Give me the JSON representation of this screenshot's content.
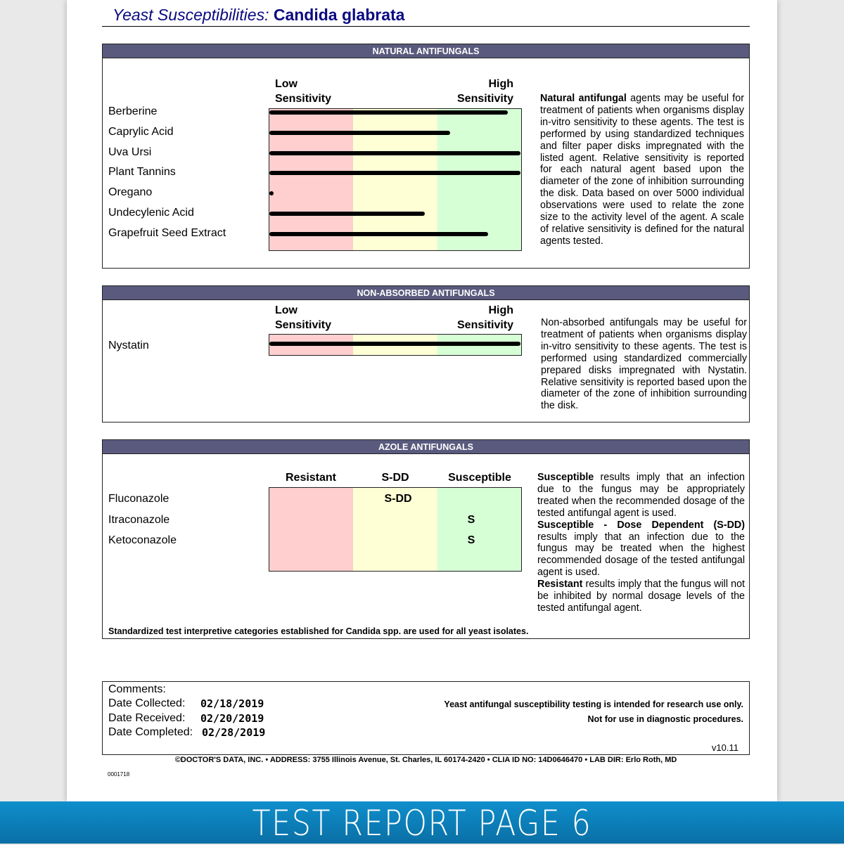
{
  "title": {
    "prefix": "Yeast Susceptibilities:",
    "organism": "Candida glabrata"
  },
  "natural": {
    "header": "NATURAL ANTIFUNGALS",
    "low": [
      "Low",
      "Sensitivity"
    ],
    "high": [
      "High",
      "Sensitivity"
    ],
    "items": [
      {
        "name": "Berberine",
        "value": 0.95
      },
      {
        "name": "Caprylic Acid",
        "value": 0.72
      },
      {
        "name": "Uva Ursi",
        "value": 1.0
      },
      {
        "name": "Plant Tannins",
        "value": 1.0
      },
      {
        "name": "Oregano",
        "value": 0.01
      },
      {
        "name": "Undecylenic Acid",
        "value": 0.62
      },
      {
        "name": "Grapefruit Seed Extract",
        "value": 0.87
      }
    ],
    "desc_bold": "Natural antifungal",
    "desc": " agents may be useful for treatment of patients when organisms display in-vitro sensitivity to these agents. The test is performed by using standardized techniques and filter paper disks impregnated with the listed agent. Relative sensitivity is reported for each natural agent based upon the diameter of the zone of inhibition surrounding the disk. Data based on over 5000 individual observations were used to relate the zone size to the activity level of the agent. A scale of relative sensitivity is defined for the natural agents tested."
  },
  "nonabsorbed": {
    "header": "NON-ABSORBED ANTIFUNGALS",
    "low": [
      "Low",
      "Sensitivity"
    ],
    "high": [
      "High",
      "Sensitivity"
    ],
    "items": [
      {
        "name": "Nystatin",
        "value": 1.0
      }
    ],
    "desc": "Non-absorbed antifungals may be useful for treatment of patients when organisms display in-vitro sensitivity to these agents. The test is performed using standardized commercially prepared disks impregnated with Nystatin. Relative sensitivity is reported based upon the diameter of the zone of inhibition surrounding the disk."
  },
  "azole": {
    "header": "AZOLE ANTIFUNGALS",
    "columns": [
      "Resistant",
      "S-DD",
      "Susceptible"
    ],
    "items": [
      {
        "name": "Fluconazole",
        "result": "S-DD",
        "col": 1
      },
      {
        "name": "Itraconazole",
        "result": "S",
        "col": 2
      },
      {
        "name": "Ketoconazole",
        "result": "S",
        "col": 2
      }
    ],
    "desc": [
      {
        "b": "Susceptible",
        "t": " results imply that an infection due to the fungus may be appropriately treated when the recommended dosage of the tested antifungal agent is used."
      },
      {
        "b": "Susceptible - Dose Dependent (S-DD)",
        "t": " results imply that an infection due to the fungus may be treated when the highest recommended dosage of the tested antifungal agent is used."
      },
      {
        "b": "Resistant",
        "t": " results imply that the fungus will not be inhibited by normal dosage levels of the tested antifungal agent."
      }
    ],
    "footnote": "Standardized test interpretive categories established for Candida spp. are used for all yeast isolates."
  },
  "comments": {
    "label": "Comments:",
    "collected_label": "Date Collected:",
    "collected": "02/18/2019",
    "received_label": "Date Received:",
    "received": "02/20/2019",
    "completed_label": "Date Completed:",
    "completed": "02/28/2019",
    "note1": "Yeast antifungal susceptibility testing is intended for research use only.",
    "note2": "Not for use in diagnostic procedures.",
    "version": "v10.11"
  },
  "footer": {
    "address": "©DOCTOR'S DATA, INC. • ADDRESS: 3755 Illinois Avenue, St. Charles, IL 60174-2420 • CLIA ID NO: 14D0646470 • LAB DIR: Erlo Roth, MD",
    "code": "0001718"
  },
  "banner": "TEST REPORT PAGE 6"
}
